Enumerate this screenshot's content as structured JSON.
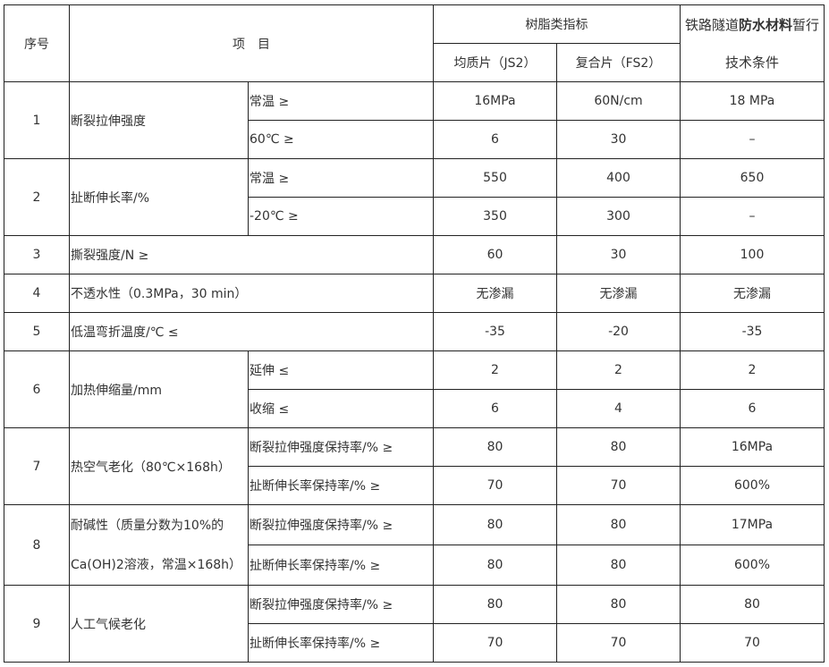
{
  "header": {
    "no": "序号",
    "item": "项　目",
    "resin_group": "树脂类指标",
    "col_js2": "均质片（JS2）",
    "col_fs2": "复合片（FS2）",
    "rail_prefix": "铁路隧道",
    "rail_bold": "防水材料",
    "rail_suffix": "暂行",
    "rail_line2": "技术条件"
  },
  "rows": [
    {
      "no": "1",
      "name": "断裂拉伸强度",
      "sub": [
        {
          "label": "常温 ≥",
          "values": [
            "16MPa",
            "60N/cm",
            "18 MPa"
          ]
        },
        {
          "label": "60℃ ≥",
          "values": [
            "6",
            "30",
            "–"
          ]
        }
      ]
    },
    {
      "no": "2",
      "name": "扯断伸长率/%",
      "sub": [
        {
          "label": "常温 ≥",
          "values": [
            "550",
            "400",
            "650"
          ]
        },
        {
          "label": "-20℃ ≥",
          "values": [
            "350",
            "300",
            "–"
          ]
        }
      ]
    },
    {
      "no": "3",
      "name": "撕裂强度/N ≥",
      "values": [
        "60",
        "30",
        "100"
      ]
    },
    {
      "no": "4",
      "name": "不透水性（0.3MPa，30 min）",
      "values": [
        "无渗漏",
        "无渗漏",
        "无渗漏"
      ]
    },
    {
      "no": "5",
      "name": "低温弯折温度/℃ ≤",
      "values": [
        "-35",
        "-20",
        "-35"
      ]
    },
    {
      "no": "6",
      "name": "加热伸缩量/mm",
      "sub": [
        {
          "label": "延伸 ≤",
          "values": [
            "2",
            "2",
            "2"
          ]
        },
        {
          "label": "收缩 ≤",
          "values": [
            "6",
            "4",
            "6"
          ]
        }
      ]
    },
    {
      "no": "7",
      "name": "热空气老化（80℃×168h）",
      "sub": [
        {
          "label": "断裂拉伸强度保持率/% ≥",
          "values": [
            "80",
            "80",
            "16MPa"
          ]
        },
        {
          "label": "扯断伸长率保持率/% ≥",
          "values": [
            "70",
            "70",
            "600%"
          ]
        }
      ]
    },
    {
      "no": "8",
      "name": "耐碱性（质量分数为10%的",
      "name2": "Ca(OH)2溶液，常温×168h）",
      "sub": [
        {
          "label": "断裂拉伸强度保持率/% ≥",
          "values": [
            "80",
            "80",
            "17MPa"
          ]
        },
        {
          "label": "扯断伸长率保持率/% ≥",
          "values": [
            "80",
            "80",
            "600%"
          ]
        }
      ]
    },
    {
      "no": "9",
      "name": "人工气候老化",
      "sub": [
        {
          "label": "断裂拉伸强度保持率/% ≥",
          "values": [
            "80",
            "80",
            "80"
          ]
        },
        {
          "label": "扯断伸长率保持率/% ≥",
          "values": [
            "70",
            "70",
            "70"
          ]
        }
      ]
    }
  ]
}
